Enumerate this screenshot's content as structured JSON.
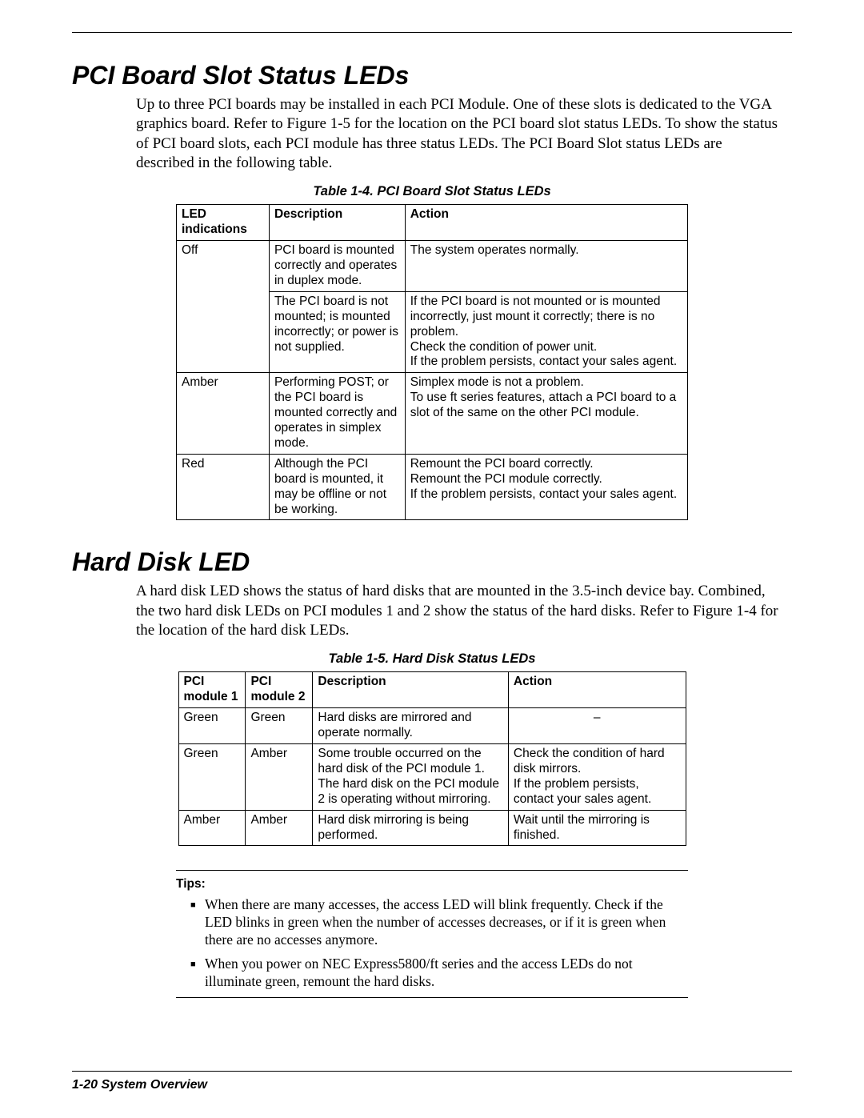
{
  "section1": {
    "heading": "PCI Board Slot Status LEDs",
    "paragraph": "Up to three PCI boards may be installed in  each PCI Module. One of these slots is dedicated to the VGA graphics board. Refer to Figure 1-5 for the location on the PCI board slot status LEDs. To show the status of PCI board slots, each PCI module has three status LEDs. The PCI Board Slot status LEDs are described in the following table.",
    "table_caption": "Table 1-4. PCI Board Slot Status LEDs",
    "table_headers": [
      "LED indications",
      "Description",
      "Action"
    ],
    "rows": [
      {
        "ind": "Off",
        "desc": "PCI board is mounted correctly and operates in duplex mode.",
        "act": "The system operates normally."
      },
      {
        "ind": "",
        "desc": "The PCI board is not mounted; is mounted incorrectly; or power is not supplied.",
        "act": "If the PCI board is not mounted or is mounted incorrectly, just mount it correctly; there is no problem.\nCheck the condition of power unit.\nIf the problem persists, contact your sales agent."
      },
      {
        "ind": "Amber",
        "desc": "Performing POST; or the PCI board is mounted correctly and operates in simplex mode.",
        "act": "Simplex mode is not a problem.\nTo use ft series features, attach a PCI board to a slot of the same on the other PCI module."
      },
      {
        "ind": "Red",
        "desc": "Although the PCI board is mounted, it may be offline or not be working.",
        "act": "Remount the PCI board correctly.\nRemount the PCI module correctly.\nIf the problem persists, contact your sales agent."
      }
    ]
  },
  "section2": {
    "heading": "Hard Disk LED",
    "paragraph": "A hard disk LED shows the status of hard disks that are mounted in the 3.5-inch device bay. Combined, the two hard disk LEDs on PCI modules 1 and 2 show the status of the hard disks.  Refer to Figure 1-4 for the location of the hard disk LEDs.",
    "table_caption": "Table 1-5. Hard Disk Status LEDs",
    "table_headers": [
      "PCI module 1",
      "PCI module 2",
      "Description",
      "Action"
    ],
    "rows": [
      {
        "m1": "Green",
        "m2": "Green",
        "desc": "Hard disks are mirrored and operate normally.",
        "act": "–"
      },
      {
        "m1": "Green",
        "m2": "Amber",
        "desc": "Some trouble occurred on the hard disk of the PCI module 1.\nThe hard disk on the PCI module 2 is operating without mirroring.",
        "act": "Check the condition of hard disk mirrors.\nIf the problem persists, contact your sales agent."
      },
      {
        "m1": "Amber",
        "m2": "Amber",
        "desc": "Hard disk mirroring is being performed.",
        "act": "Wait until the mirroring is finished."
      }
    ]
  },
  "tips": {
    "label": "Tips:",
    "items": [
      "When there are many accesses, the access LED will blink frequently.  Check if the LED blinks in green when the number of accesses decreases, or if it is green when there are no accesses anymore.",
      "When you power on NEC Express5800/ft series and the access LEDs do not illuminate green, remount the hard disks."
    ]
  },
  "footer": "1-20   System Overview"
}
